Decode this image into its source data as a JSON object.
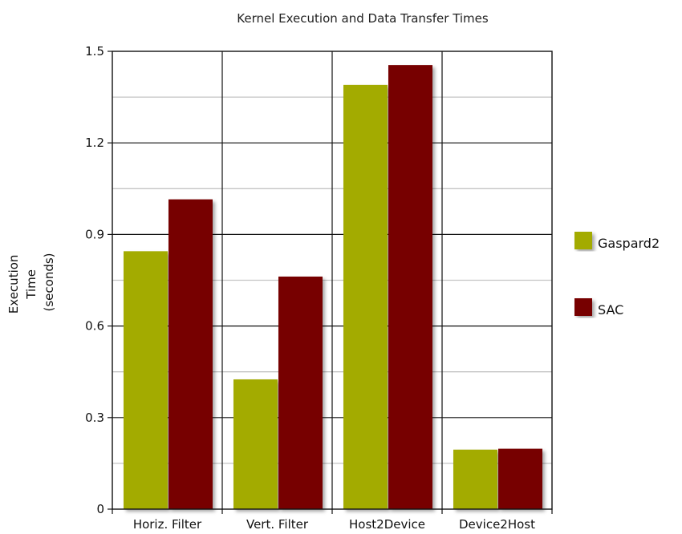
{
  "chart_data": {
    "type": "bar",
    "title": "Kernel Execution and Data Transfer Times",
    "ylabel_lines": [
      "Execution",
      "Time",
      "(seconds)"
    ],
    "categories": [
      "Horiz. Filter",
      "Vert. Filter",
      "Host2Device",
      "Device2Host"
    ],
    "series": [
      {
        "name": "Gaspard2",
        "color": "#a3ab00",
        "values": [
          0.845,
          0.425,
          1.39,
          0.195
        ]
      },
      {
        "name": "SAC",
        "color": "#770000",
        "values": [
          1.015,
          0.762,
          1.455,
          0.198
        ]
      }
    ],
    "ylim": [
      0,
      1.5
    ],
    "yticks": [
      0,
      0.3,
      0.6,
      0.9,
      1.2,
      1.5
    ],
    "ytick_labels": [
      "0",
      "0.3",
      "0.6",
      "0.9",
      "1.2",
      "1.5"
    ],
    "grid": true,
    "legend_position": "right"
  }
}
